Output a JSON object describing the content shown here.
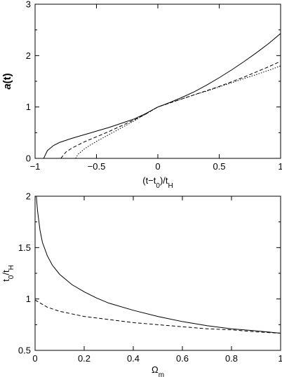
{
  "chart_data": [
    {
      "type": "line",
      "ylabel_italic": "a",
      "ylabel_rest": "(t)",
      "xlabel_parts": [
        "(t−t",
        "0",
        ")/t",
        "H"
      ],
      "xlim": [
        -1,
        1
      ],
      "ylim": [
        0,
        3
      ],
      "xticks": [
        -1,
        -0.5,
        0,
        0.5,
        1
      ],
      "xtick_labels": [
        "−1",
        "−0.5",
        "0",
        "0.5",
        "1"
      ],
      "yticks": [
        0,
        1,
        2,
        3
      ],
      "ytick_labels": [
        "0",
        "1",
        "2",
        "3"
      ],
      "series": [
        {
          "style": "solid",
          "x": [
            -0.93,
            -0.9,
            -0.85,
            -0.8,
            -0.7,
            -0.6,
            -0.5,
            -0.4,
            -0.3,
            -0.2,
            -0.1,
            0,
            0.1,
            0.2,
            0.3,
            0.4,
            0.5,
            0.6,
            0.7,
            0.8,
            0.9,
            1.0
          ],
          "y": [
            0.0,
            0.15,
            0.25,
            0.31,
            0.39,
            0.46,
            0.53,
            0.6,
            0.68,
            0.76,
            0.87,
            1.0,
            1.09,
            1.19,
            1.3,
            1.43,
            1.57,
            1.72,
            1.88,
            2.05,
            2.23,
            2.43
          ]
        },
        {
          "style": "dashed",
          "x": [
            -0.79,
            -0.75,
            -0.7,
            -0.6,
            -0.5,
            -0.4,
            -0.3,
            -0.2,
            -0.1,
            0,
            0.1,
            0.2,
            0.3,
            0.4,
            0.5,
            0.6,
            0.7,
            0.8,
            0.9,
            1.0
          ],
          "y": [
            0.0,
            0.12,
            0.2,
            0.32,
            0.42,
            0.52,
            0.63,
            0.74,
            0.86,
            1.0,
            1.08,
            1.16,
            1.24,
            1.32,
            1.4,
            1.49,
            1.58,
            1.68,
            1.78,
            1.89
          ]
        },
        {
          "style": "dotted",
          "x": [
            -0.67,
            -0.65,
            -0.6,
            -0.55,
            -0.5,
            -0.4,
            -0.3,
            -0.2,
            -0.1,
            0,
            0.1,
            0.2,
            0.3,
            0.4,
            0.5,
            0.6,
            0.7,
            0.8,
            0.9,
            1.0
          ],
          "y": [
            0.0,
            0.08,
            0.18,
            0.26,
            0.33,
            0.46,
            0.59,
            0.72,
            0.86,
            1.0,
            1.08,
            1.16,
            1.24,
            1.31,
            1.39,
            1.47,
            1.55,
            1.63,
            1.71,
            1.8
          ]
        }
      ]
    },
    {
      "type": "line",
      "ylabel_parts": [
        "t",
        "0",
        "/t",
        "H"
      ],
      "xlabel_parts": [
        "Ω",
        "m"
      ],
      "xlim": [
        0,
        1
      ],
      "ylim": [
        0.5,
        2
      ],
      "xticks": [
        0,
        0.2,
        0.4,
        0.6,
        0.8,
        1
      ],
      "xtick_labels": [
        "0",
        "0.2",
        "0.4",
        "0.6",
        "0.8",
        "1"
      ],
      "yticks": [
        0.5,
        1,
        1.5,
        2
      ],
      "ytick_labels": [
        "0.5",
        "1",
        "1.5",
        "2"
      ],
      "series": [
        {
          "style": "solid",
          "x": [
            0.005,
            0.01,
            0.02,
            0.03,
            0.05,
            0.07,
            0.1,
            0.15,
            0.2,
            0.25,
            0.3,
            0.4,
            0.5,
            0.6,
            0.7,
            0.8,
            0.9,
            1.0
          ],
          "y": [
            2.0,
            1.86,
            1.67,
            1.55,
            1.42,
            1.33,
            1.24,
            1.14,
            1.07,
            1.01,
            0.96,
            0.89,
            0.83,
            0.78,
            0.74,
            0.71,
            0.69,
            0.667
          ]
        },
        {
          "style": "dashed",
          "x": [
            0.0,
            0.05,
            0.1,
            0.2,
            0.3,
            0.4,
            0.5,
            0.6,
            0.7,
            0.8,
            0.9,
            1.0
          ],
          "y": [
            0.99,
            0.92,
            0.88,
            0.83,
            0.8,
            0.77,
            0.75,
            0.73,
            0.71,
            0.7,
            0.68,
            0.667
          ]
        }
      ]
    }
  ]
}
